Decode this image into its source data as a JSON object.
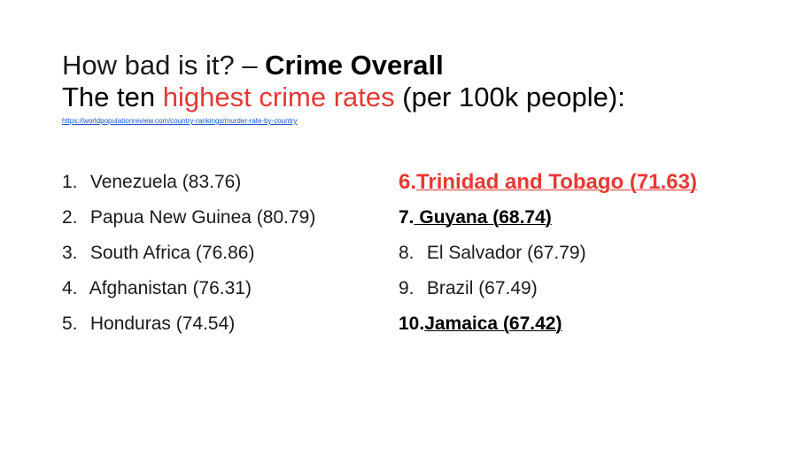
{
  "title": {
    "line1_prefix": "How bad is it? – ",
    "line1_strong": "Crime Overall",
    "line2_prefix": "The ten ",
    "line2_accent": "highest crime rates",
    "line2_suffix": " (per 100k people):",
    "source_url": "https://worldpopulationreview.com/country-rankings/murder-rate-by-country"
  },
  "colors": {
    "accent": "#e53935",
    "link": "#1155cc",
    "text": "#1a1a1a"
  },
  "left_list": [
    {
      "num": "1.",
      "text": "Venezuela (83.76)"
    },
    {
      "num": "2.",
      "text": "Papua New Guinea (80.79)"
    },
    {
      "num": "3.",
      "text": "South Africa (76.86)"
    },
    {
      "num": "4.",
      "text": "Afghanistan (76.31)"
    },
    {
      "num": "5.",
      "text": "Honduras (74.54)"
    }
  ],
  "right_list": [
    {
      "num": "6.",
      "text": "Trinidad and Tobago (71.63)"
    },
    {
      "num": "7.",
      "text": "Guyana (68.74)"
    },
    {
      "num": "8.",
      "text": "El Salvador (67.79)"
    },
    {
      "num": "9.",
      "text": "Brazil (67.49)"
    },
    {
      "num": "10.",
      "text": "Jamaica (67.42)"
    }
  ]
}
